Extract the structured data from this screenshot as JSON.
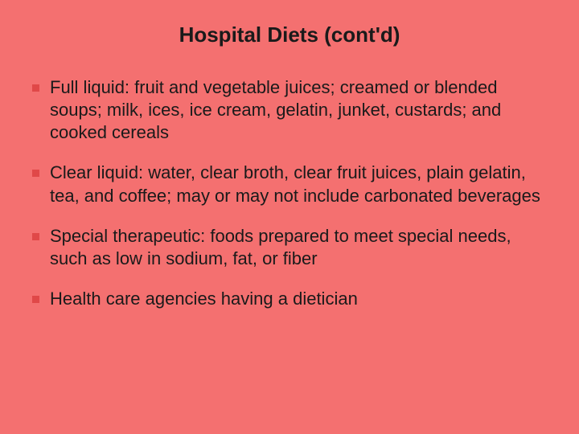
{
  "slide": {
    "title": "Hospital Diets (cont'd)",
    "title_fontsize": 26,
    "title_color": "#1a1a1a",
    "background_color": "#f47070",
    "bullet_marker_color": "#e04848",
    "body_fontsize": 22,
    "body_color": "#1a1a1a",
    "font_family": "Verdana",
    "bullets": [
      "Full liquid: fruit and vegetable juices; creamed or blended soups; milk, ices, ice cream, gelatin, junket, custards; and cooked cereals",
      "Clear liquid: water, clear broth, clear fruit juices, plain gelatin, tea, and coffee; may or may not include carbonated beverages",
      "Special therapeutic: foods prepared to meet special needs, such as low in sodium, fat, or fiber",
      "Health care agencies having a dietician"
    ]
  }
}
